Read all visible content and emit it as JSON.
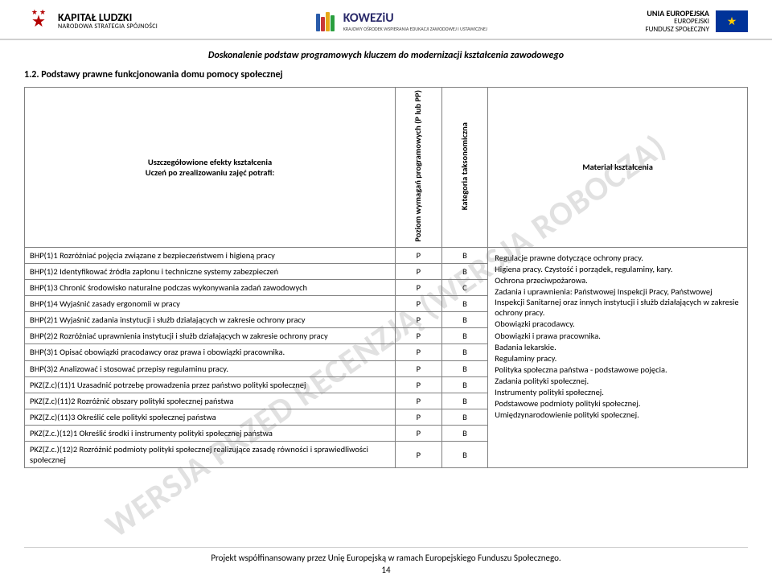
{
  "header": {
    "left": {
      "line1": "KAPITAŁ LUDZKI",
      "line2": "NARODOWA STRATEGIA SPÓJNOŚCI"
    },
    "center": {
      "brand": "KOWEZiU",
      "sub": "KRAJOWY OŚRODEK WSPIERANIA EDUKACJI ZAWODOWEJ I USTAWICZNEJ",
      "book_colors": [
        "#2a5caa",
        "#c93838",
        "#e6a817",
        "#2a9f3e"
      ],
      "book_heights": [
        22,
        18,
        24,
        20
      ]
    },
    "right": {
      "line1": "UNIA EUROPEJSKA",
      "line2": "EUROPEJSKI",
      "line3": "FUNDUSZ SPOŁECZNY",
      "flag_bg": "#003399",
      "flag_star": "#ffcc00"
    }
  },
  "banner": "Doskonalenie podstaw programowych kluczem do modernizacji kształcenia zawodowego",
  "section": "1.2. Podstawy prawne funkcjonowania domu pomocy społecznej",
  "watermark": "WERSJA PRZED RECENZJĄ (WERSJA ROBOCZA)",
  "table": {
    "head": {
      "c1a": "Uszczegółowione efekty kształcenia",
      "c1b": "Uczeń po zrealizowaniu zajęć potrafi:",
      "c2": "Poziom wymagań programowych (P lub PP)",
      "c3": "Kategoria taksonomiczna",
      "c4": "Materiał kształcenia"
    },
    "rows": [
      {
        "c1": "BHP(1)1 Rozróżniać pojęcia związane z bezpieczeństwem i higieną pracy",
        "c2": "P",
        "c3": "B"
      },
      {
        "c1": "BHP(1)2 Identyfikować źródła zapłonu i techniczne systemy zabezpieczeń",
        "c2": "P",
        "c3": "B"
      },
      {
        "c1": "BHP(1)3 Chronić środowisko naturalne podczas wykonywania zadań zawodowych",
        "c2": "P",
        "c3": "C"
      },
      {
        "c1": "BHP(1)4 Wyjaśnić zasady ergonomii w pracy",
        "c2": "P",
        "c3": "B"
      },
      {
        "c1": "BHP(2)1 Wyjaśnić zadania instytucji i służb działających w zakresie ochrony pracy",
        "c2": "P",
        "c3": "B"
      },
      {
        "c1": "BHP(2)2 Rozróżniać uprawnienia instytucji i służb działających w zakresie ochrony pracy",
        "c2": "P",
        "c3": "B"
      },
      {
        "c1": "BHP(3)1 Opisać obowiązki pracodawcy oraz prawa i obowiązki pracownika.",
        "c2": "P",
        "c3": "B"
      },
      {
        "c1": "BHP(3)2 Analizować i stosować przepisy regulaminu pracy.",
        "c2": "P",
        "c3": "B"
      },
      {
        "c1": "PKZ(Z.c)(11)1 Uzasadnić potrzebę prowadzenia przez państwo polityki społecznej",
        "c2": "P",
        "c3": "B"
      },
      {
        "c1": "PKZ(Z.c)(11)2 Rozróżnić obszary polityki społecznej państwa",
        "c2": "P",
        "c3": "B"
      },
      {
        "c1": "PKZ(Z.c)(11)3 Określić cele polityki społecznej państwa",
        "c2": "P",
        "c3": "B"
      },
      {
        "c1": "PKZ(Z.c.)(12)1 Określić środki i instrumenty polityki społecznej państwa",
        "c2": "P",
        "c3": "B"
      },
      {
        "c1": "PKZ(Z.c.)(12)2 Rozróżnić podmioty polityki społecznej realizujące zasadę równości i sprawiedliwości społecznej",
        "c2": "P",
        "c3": "B"
      }
    ],
    "materials": [
      "Regulacje prawne dotyczące ochrony pracy.",
      "Higiena pracy. Czystość i porządek, regulaminy, kary.",
      "Ochrona przeciwpożarowa.",
      "Zadania i uprawnienia: Państwowej Inspekcji Pracy, Państwowej Inspekcji Sanitarnej oraz innych instytucji i służb działających w zakresie ochrony pracy.",
      "Obowiązki pracodawcy.",
      "Obowiązki i prawa pracownika.",
      "Badania lekarskie.",
      "Regulaminy pracy.",
      "Polityka społeczna państwa - podstawowe pojęcia.",
      "Zadania polityki społecznej.",
      "Instrumenty polityki społecznej.",
      "Podstawowe podmioty polityki społecznej.",
      "Umiędzynarodowienie polityki społecznej."
    ]
  },
  "footer": {
    "line1": "Projekt współfinansowany przez Unię Europejską w ramach Europejskiego Funduszu Społecznego.",
    "page": "14"
  }
}
